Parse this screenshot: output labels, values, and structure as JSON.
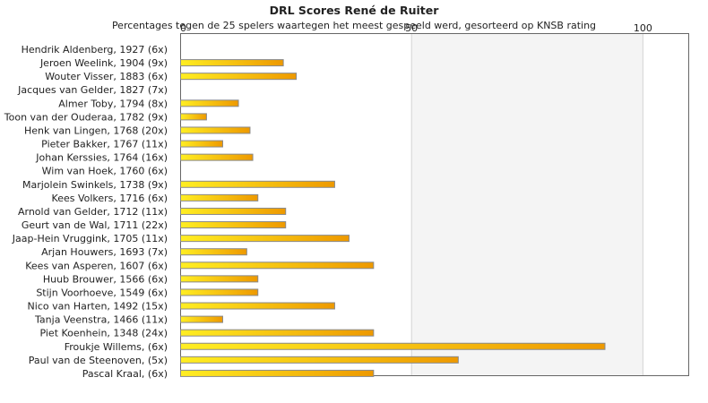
{
  "chart_data": {
    "type": "bar",
    "orientation": "horizontal",
    "title": "DRL Scores René de Ruiter",
    "subtitle": "Percentages tegen de 25 spelers waartegen het meest gespeeld werd, gesorteerd op KNSB rating",
    "xlim": [
      0,
      110
    ],
    "xticks": [
      "0",
      "50",
      "100"
    ],
    "xtick_values": [
      0,
      50,
      100
    ],
    "categories": [
      "Hendrik Aldenberg, 1927 (6x)",
      "Jeroen Weelink, 1904 (9x)",
      "Wouter Visser, 1883 (6x)",
      "Jacques van Gelder, 1827 (7x)",
      "Almer Toby, 1794 (8x)",
      "Toon van der Ouderaa, 1782 (9x)",
      "Henk van Lingen, 1768 (20x)",
      "Pieter Bakker, 1767 (11x)",
      "Johan Kerssies, 1764 (16x)",
      "Wim van Hoek, 1760 (6x)",
      "Marjolein Swinkels, 1738 (9x)",
      "Kees Volkers, 1716 (6x)",
      "Arnold van Gelder, 1712 (11x)",
      "Geurt van de Wal, 1711 (22x)",
      "Jaap-Hein Vruggink, 1705 (11x)",
      "Arjan Houwers, 1693 (7x)",
      "Kees van Asperen, 1607 (6x)",
      "Huub Brouwer, 1566 (6x)",
      "Stijn Voorhoeve, 1549 (6x)",
      "Nico van Harten, 1492 (15x)",
      "Tanja Veenstra, 1466 (11x)",
      "Piet Koenhein, 1348 (24x)",
      "Froukje Willems,  (6x)",
      "Paul van de Steenoven,  (5x)",
      "Pascal Kraal,  (6x)"
    ],
    "values": [
      0,
      22.2,
      25,
      0,
      12.5,
      5.6,
      15,
      9.1,
      15.6,
      0,
      33.3,
      16.7,
      22.7,
      22.7,
      36.4,
      14.3,
      41.7,
      16.7,
      16.7,
      33.3,
      9.1,
      41.7,
      91.7,
      60,
      41.7
    ],
    "grid": "vertical bands",
    "colors": {
      "bar_start": "#ffee22",
      "bar_end": "#ee9900",
      "bar_stroke": "#8a8a8a",
      "band_shade": "#f4f4f4",
      "gridline": "#d4d4d4",
      "frame": "#666666"
    }
  }
}
